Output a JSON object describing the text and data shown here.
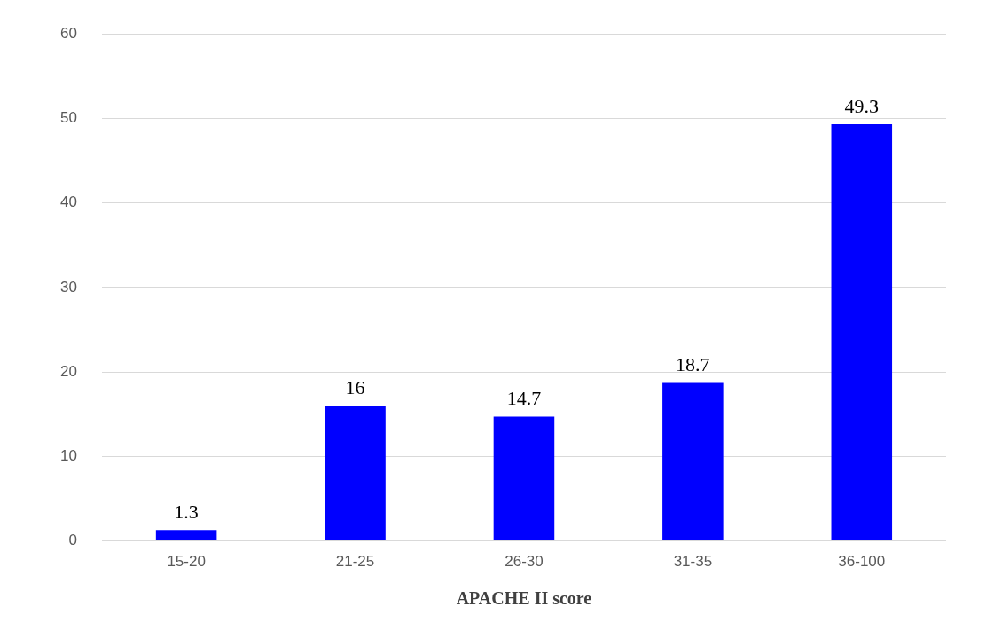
{
  "chart_data": {
    "type": "bar",
    "xlabel": "APACHE II score",
    "categories": [
      "15-20",
      "21-25",
      "26-30",
      "31-35",
      "36-100"
    ],
    "values": [
      1.3,
      16,
      14.7,
      18.7,
      49.3
    ],
    "color": "#0000ff",
    "ylim": [
      0,
      60
    ],
    "yticks": [
      0,
      10,
      20,
      30,
      40,
      50,
      60
    ],
    "grid": "y",
    "data_labels": true,
    "legend": false
  }
}
